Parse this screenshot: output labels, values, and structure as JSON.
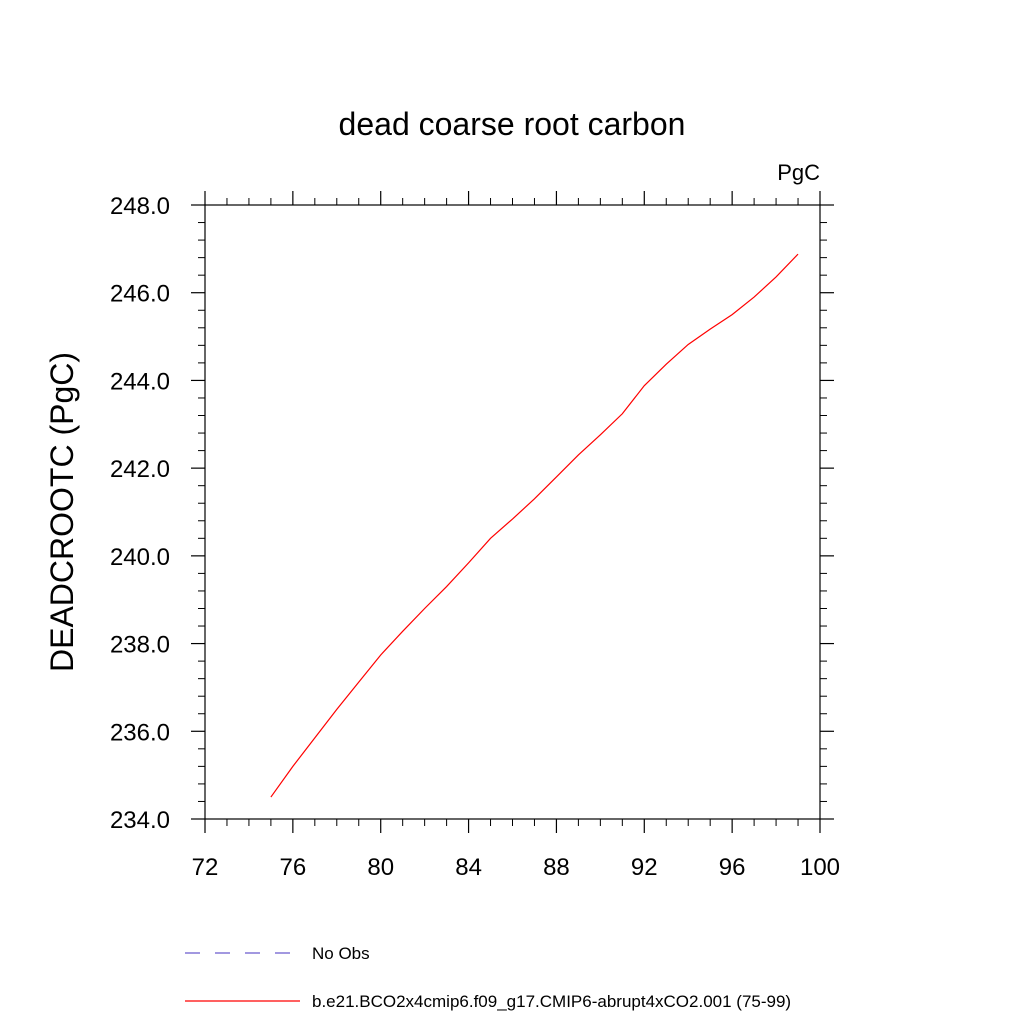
{
  "chart_data": {
    "type": "line",
    "title": "dead coarse root carbon",
    "units_label": "PgC",
    "ylabel": "DEADCROOTC  (PgC)",
    "xlabel": "",
    "xlim": [
      72,
      100
    ],
    "ylim": [
      234.0,
      248.0
    ],
    "x_ticks": [
      72,
      76,
      80,
      84,
      88,
      92,
      96,
      100
    ],
    "x_tick_labels": [
      "72",
      "76",
      "80",
      "84",
      "88",
      "92",
      "96",
      "100"
    ],
    "y_ticks": [
      234.0,
      236.0,
      238.0,
      240.0,
      242.0,
      244.0,
      246.0,
      248.0
    ],
    "y_tick_labels": [
      "234.0",
      "236.0",
      "238.0",
      "240.0",
      "242.0",
      "244.0",
      "246.0",
      "248.0"
    ],
    "grid": false,
    "legend_position": "bottom",
    "series": [
      {
        "name": "No Obs",
        "color": "#6a5acd",
        "style": "dashed",
        "x": [],
        "y": []
      },
      {
        "name": "b.e21.BCO2x4cmip6.f09_g17.CMIP6-abrupt4xCO2.001 (75-99)",
        "color": "#ff0000",
        "style": "solid",
        "x": [
          75,
          76,
          77,
          78,
          79,
          80,
          81,
          82,
          83,
          84,
          85,
          86,
          87,
          88,
          89,
          90,
          91,
          92,
          93,
          94,
          95,
          96,
          97,
          98,
          99
        ],
        "y": [
          234.5,
          235.2,
          235.85,
          236.5,
          237.12,
          237.74,
          238.28,
          238.8,
          239.3,
          239.84,
          240.4,
          240.84,
          241.3,
          241.8,
          242.3,
          242.76,
          243.24,
          243.88,
          244.37,
          244.82,
          245.17,
          245.5,
          245.9,
          246.36,
          246.88
        ]
      }
    ]
  }
}
